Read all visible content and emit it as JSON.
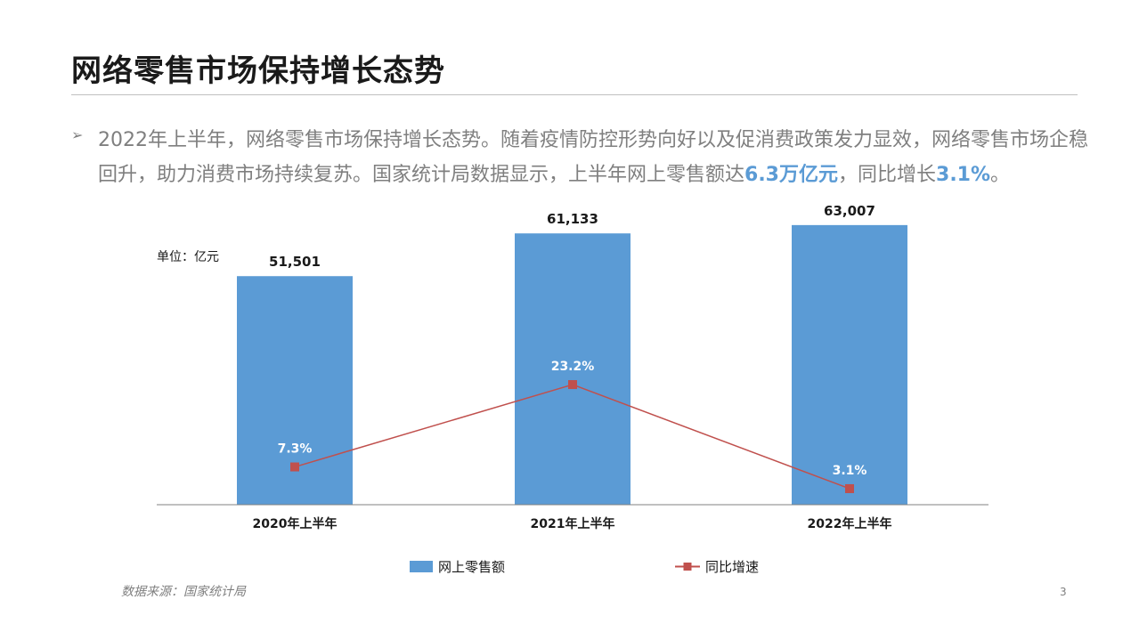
{
  "title": "网络零售市场保持增长态势",
  "bullet_symbol": "➢",
  "paragraph": {
    "part1": "2022年上半年，网络零售市场保持增长态势。随着疫情防控形势向好以及促消费政策发力显效，网络零售市场企稳回升，助力消费市场持续复苏。国家统计局数据显示，上半年网上零售额达",
    "highlight1": "6.3万亿元",
    "part2": "，同比增长",
    "highlight2": "3.1%",
    "part3": "。"
  },
  "source": "数据来源：国家统计局",
  "page_number": "3",
  "colors": {
    "bar": "#5b9bd5",
    "line": "#c0504d",
    "highlight": "#5b9bd5"
  },
  "chart_data": {
    "type": "bar",
    "unit_label": "单位：亿元",
    "categories": [
      "2020年上半年",
      "2021年上半年",
      "2022年上半年"
    ],
    "series": [
      {
        "name": "网上零售额",
        "type": "bar",
        "values": [
          51501,
          61133,
          63007
        ],
        "labels": [
          "51,501",
          "61,133",
          "63,007"
        ]
      },
      {
        "name": "同比增速",
        "type": "line",
        "values": [
          7.3,
          23.2,
          3.1
        ],
        "labels": [
          "7.3%",
          "23.2%",
          "3.1%"
        ]
      }
    ],
    "ylim": [
      0,
      70000
    ],
    "line_ylim": [
      0,
      60
    ],
    "grid": false,
    "legend_position": "bottom"
  }
}
